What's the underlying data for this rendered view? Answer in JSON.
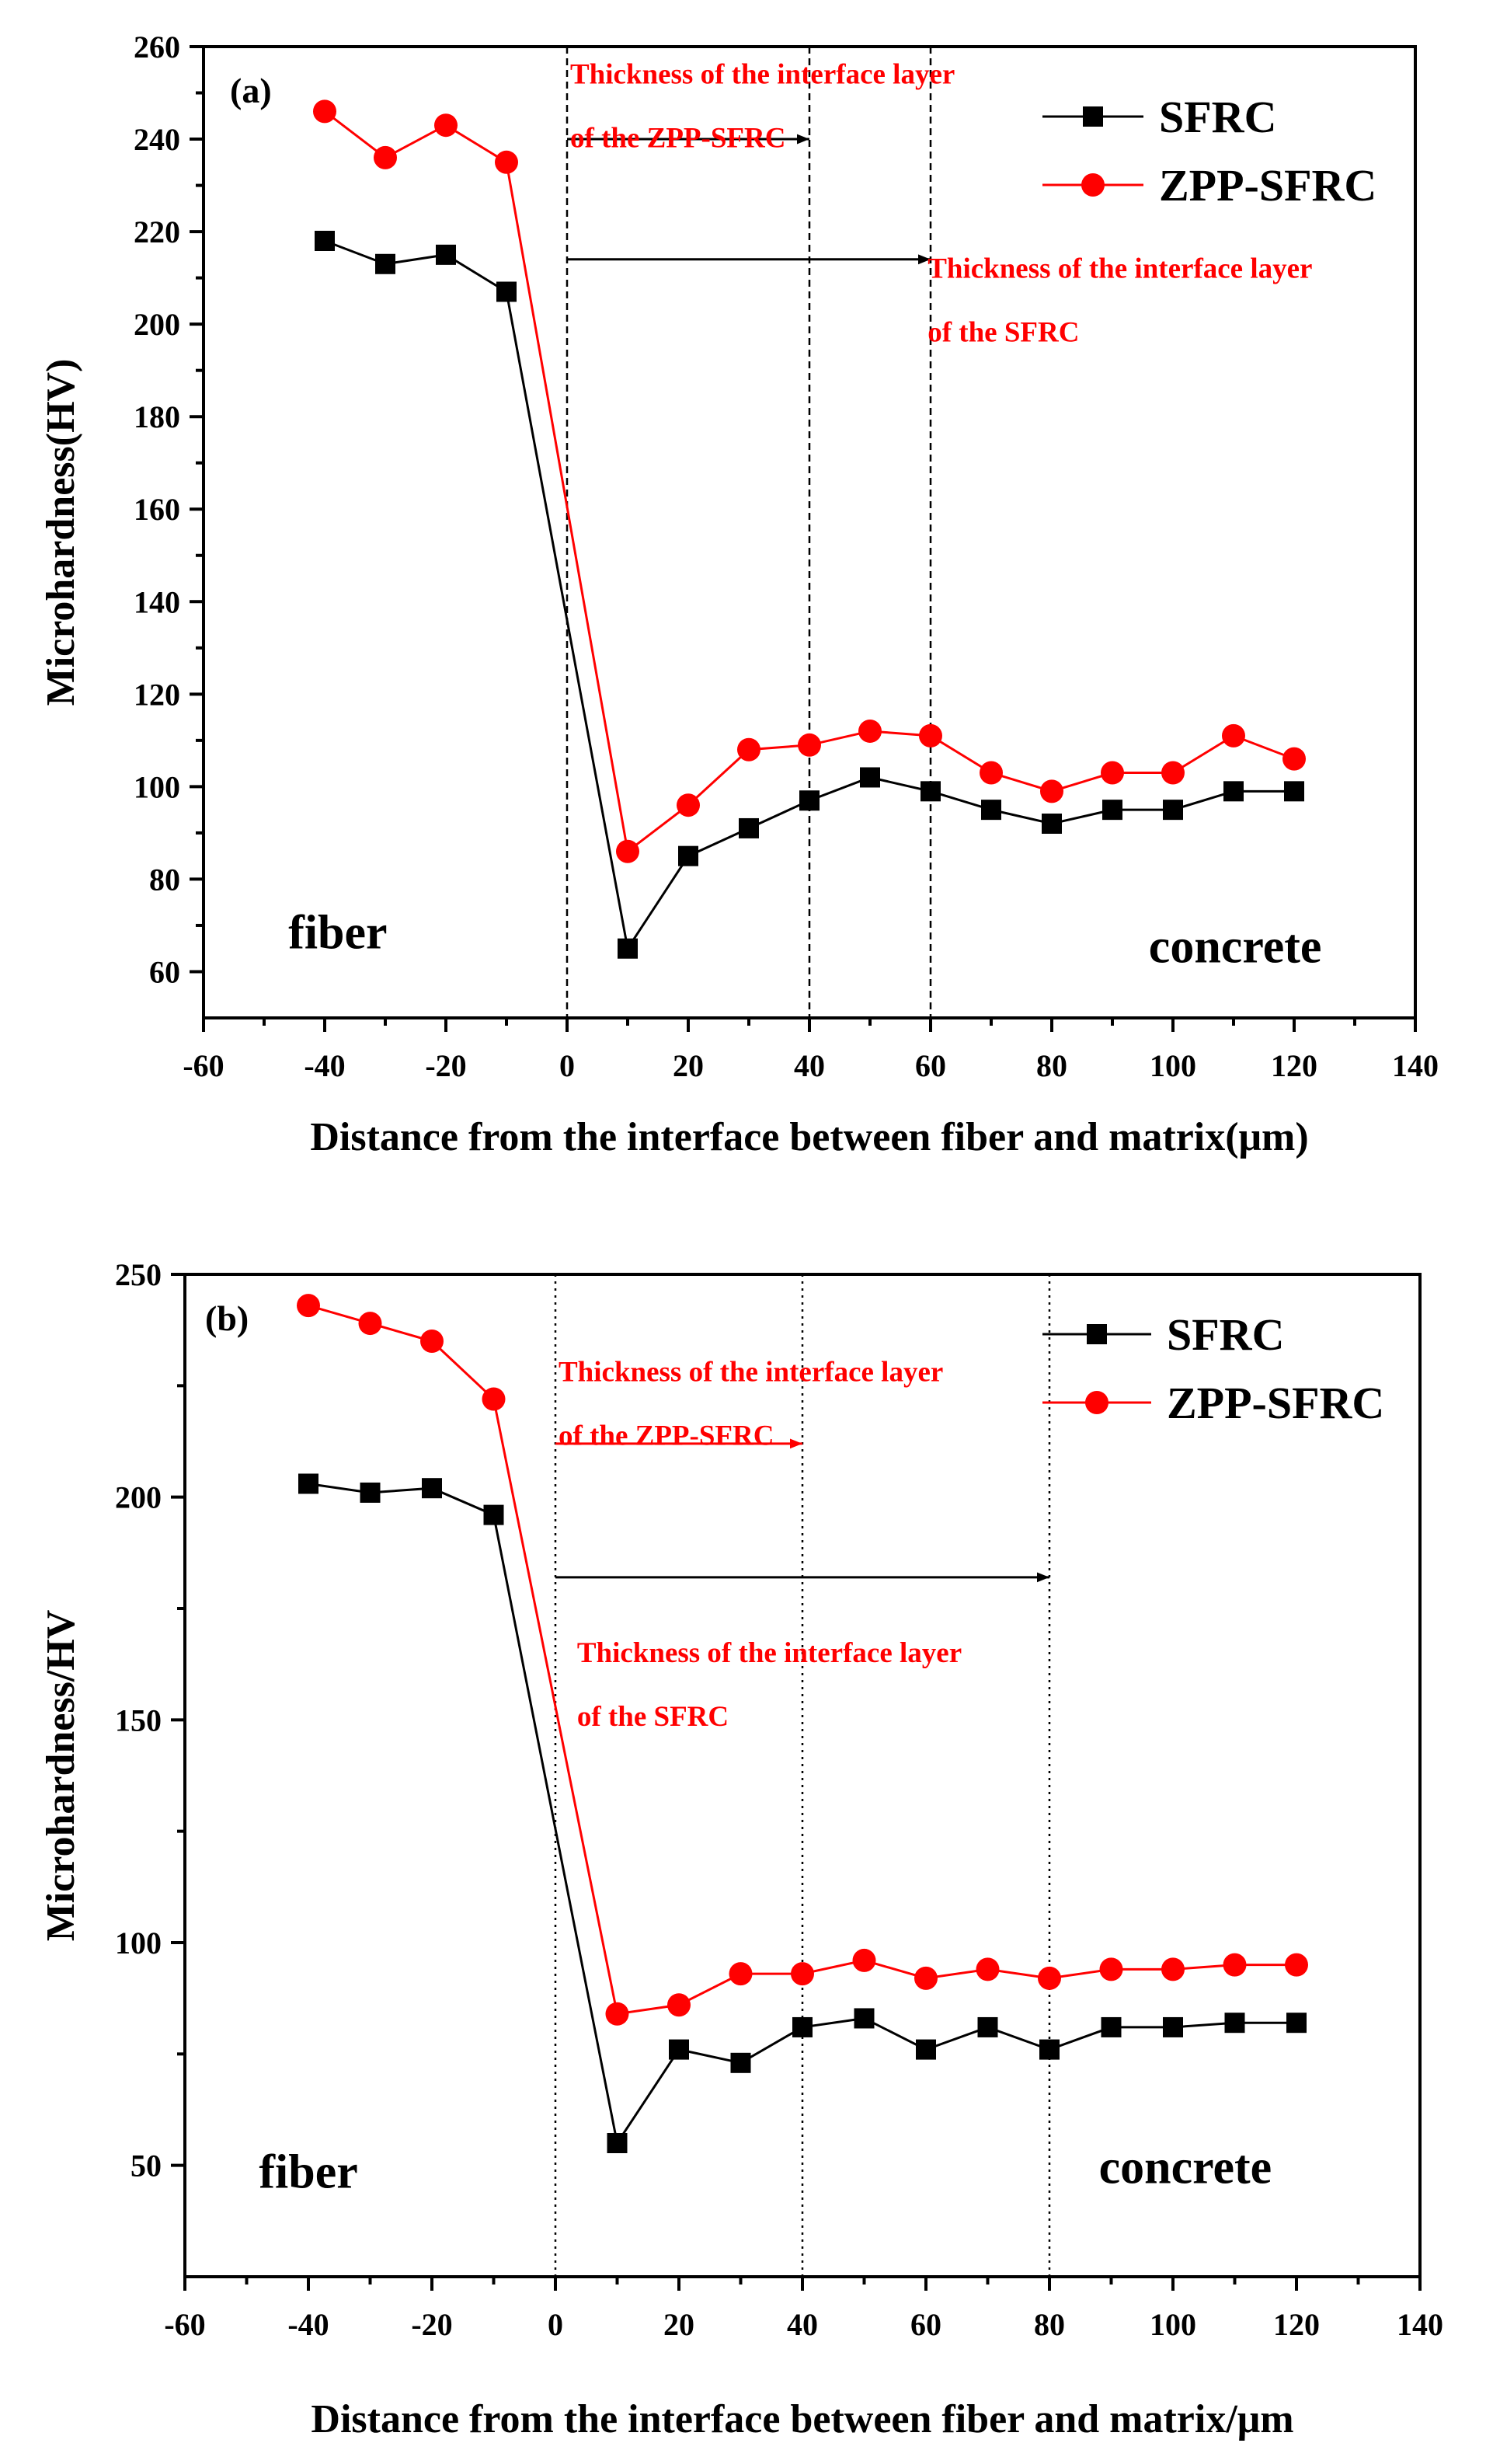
{
  "chart_data": [
    {
      "type": "line",
      "panel_label": "(a)",
      "xlabel": "Distance from the interface between fiber and matrix(μm)",
      "ylabel": "Microhardness(HV)",
      "xlim": [
        -60,
        140
      ],
      "ylim": [
        50,
        260
      ],
      "x_ticks": [
        -60,
        -40,
        -20,
        0,
        20,
        40,
        60,
        80,
        100,
        120,
        140
      ],
      "y_ticks": [
        60,
        80,
        100,
        120,
        140,
        160,
        180,
        200,
        220,
        240,
        260
      ],
      "grid": false,
      "legend_position": "top-right",
      "series": [
        {
          "name": "SFRC",
          "color": "#000000",
          "marker": "square",
          "x": [
            -40,
            -30,
            -20,
            -10,
            10,
            20,
            30,
            40,
            50,
            60,
            70,
            80,
            90,
            100,
            110,
            120
          ],
          "y": [
            218,
            213,
            215,
            207,
            65,
            85,
            91,
            97,
            102,
            99,
            95,
            92,
            95,
            95,
            99,
            99
          ]
        },
        {
          "name": "ZPP-SFRC",
          "color": "#ff0000",
          "marker": "circle",
          "x": [
            -40,
            -30,
            -20,
            -10,
            10,
            20,
            30,
            40,
            50,
            60,
            70,
            80,
            90,
            100,
            110,
            120
          ],
          "y": [
            246,
            236,
            243,
            235,
            86,
            96,
            108,
            109,
            112,
            111,
            103,
            99,
            103,
            103,
            111,
            106
          ]
        }
      ],
      "vlines": [
        0,
        40,
        60
      ],
      "arrows": [
        {
          "from": 0,
          "to": 40,
          "y": 240,
          "color": "#000000"
        },
        {
          "from": 0,
          "to": 60,
          "y": 214,
          "color": "#000000"
        }
      ],
      "annotations": [
        {
          "lines": [
            "Thickness of the interface layer",
            "of the ZPP-SFRC"
          ],
          "x": 0,
          "y": 252,
          "color": "#ff0000"
        },
        {
          "lines": [
            "Thickness of the interface layer",
            "of the SFRC"
          ],
          "x": 59,
          "y": 210,
          "color": "#ff0000"
        }
      ],
      "region_labels": [
        {
          "text": "fiber",
          "x": -46,
          "y": 65
        },
        {
          "text": "concrete",
          "x": 96,
          "y": 62
        }
      ]
    },
    {
      "type": "line",
      "panel_label": "(b)",
      "xlabel": "Distance from the interface between fiber and matrix/μm",
      "ylabel": "Microhardness/HV",
      "xlim": [
        -60,
        140
      ],
      "ylim": [
        25,
        250
      ],
      "x_ticks": [
        -60,
        -40,
        -20,
        0,
        20,
        40,
        60,
        80,
        100,
        120,
        140
      ],
      "y_ticks": [
        50,
        100,
        150,
        200,
        250
      ],
      "grid": false,
      "legend_position": "top-right",
      "series": [
        {
          "name": "SFRC",
          "color": "#000000",
          "marker": "square",
          "x": [
            -40,
            -30,
            -20,
            -10,
            10,
            20,
            30,
            40,
            50,
            60,
            70,
            80,
            90,
            100,
            110,
            120
          ],
          "y": [
            203,
            201,
            202,
            196,
            55,
            76,
            73,
            81,
            83,
            76,
            81,
            76,
            81,
            81,
            82,
            82
          ]
        },
        {
          "name": "ZPP-SFRC",
          "color": "#ff0000",
          "marker": "circle",
          "x": [
            -40,
            -30,
            -20,
            -10,
            10,
            20,
            30,
            40,
            50,
            60,
            70,
            80,
            90,
            100,
            110,
            120
          ],
          "y": [
            243,
            239,
            235,
            222,
            84,
            86,
            93,
            93,
            96,
            92,
            94,
            92,
            94,
            94,
            95,
            95
          ]
        }
      ],
      "vlines": [
        0,
        40,
        80
      ],
      "arrows": [
        {
          "from": 0,
          "to": 40,
          "y": 212,
          "color": "#ff0000"
        },
        {
          "from": 0,
          "to": 80,
          "y": 182,
          "color": "#000000"
        }
      ],
      "annotations": [
        {
          "lines": [
            "Thickness of the interface layer",
            "of the ZPP-SFRC"
          ],
          "x": 0,
          "y": 226,
          "color": "#ff0000"
        },
        {
          "lines": [
            "Thickness of the interface layer",
            "of the SFRC"
          ],
          "x": 3,
          "y": 163,
          "color": "#ff0000"
        }
      ],
      "region_labels": [
        {
          "text": "fiber",
          "x": -48,
          "y": 45
        },
        {
          "text": "concrete",
          "x": 88,
          "y": 46
        }
      ]
    }
  ]
}
